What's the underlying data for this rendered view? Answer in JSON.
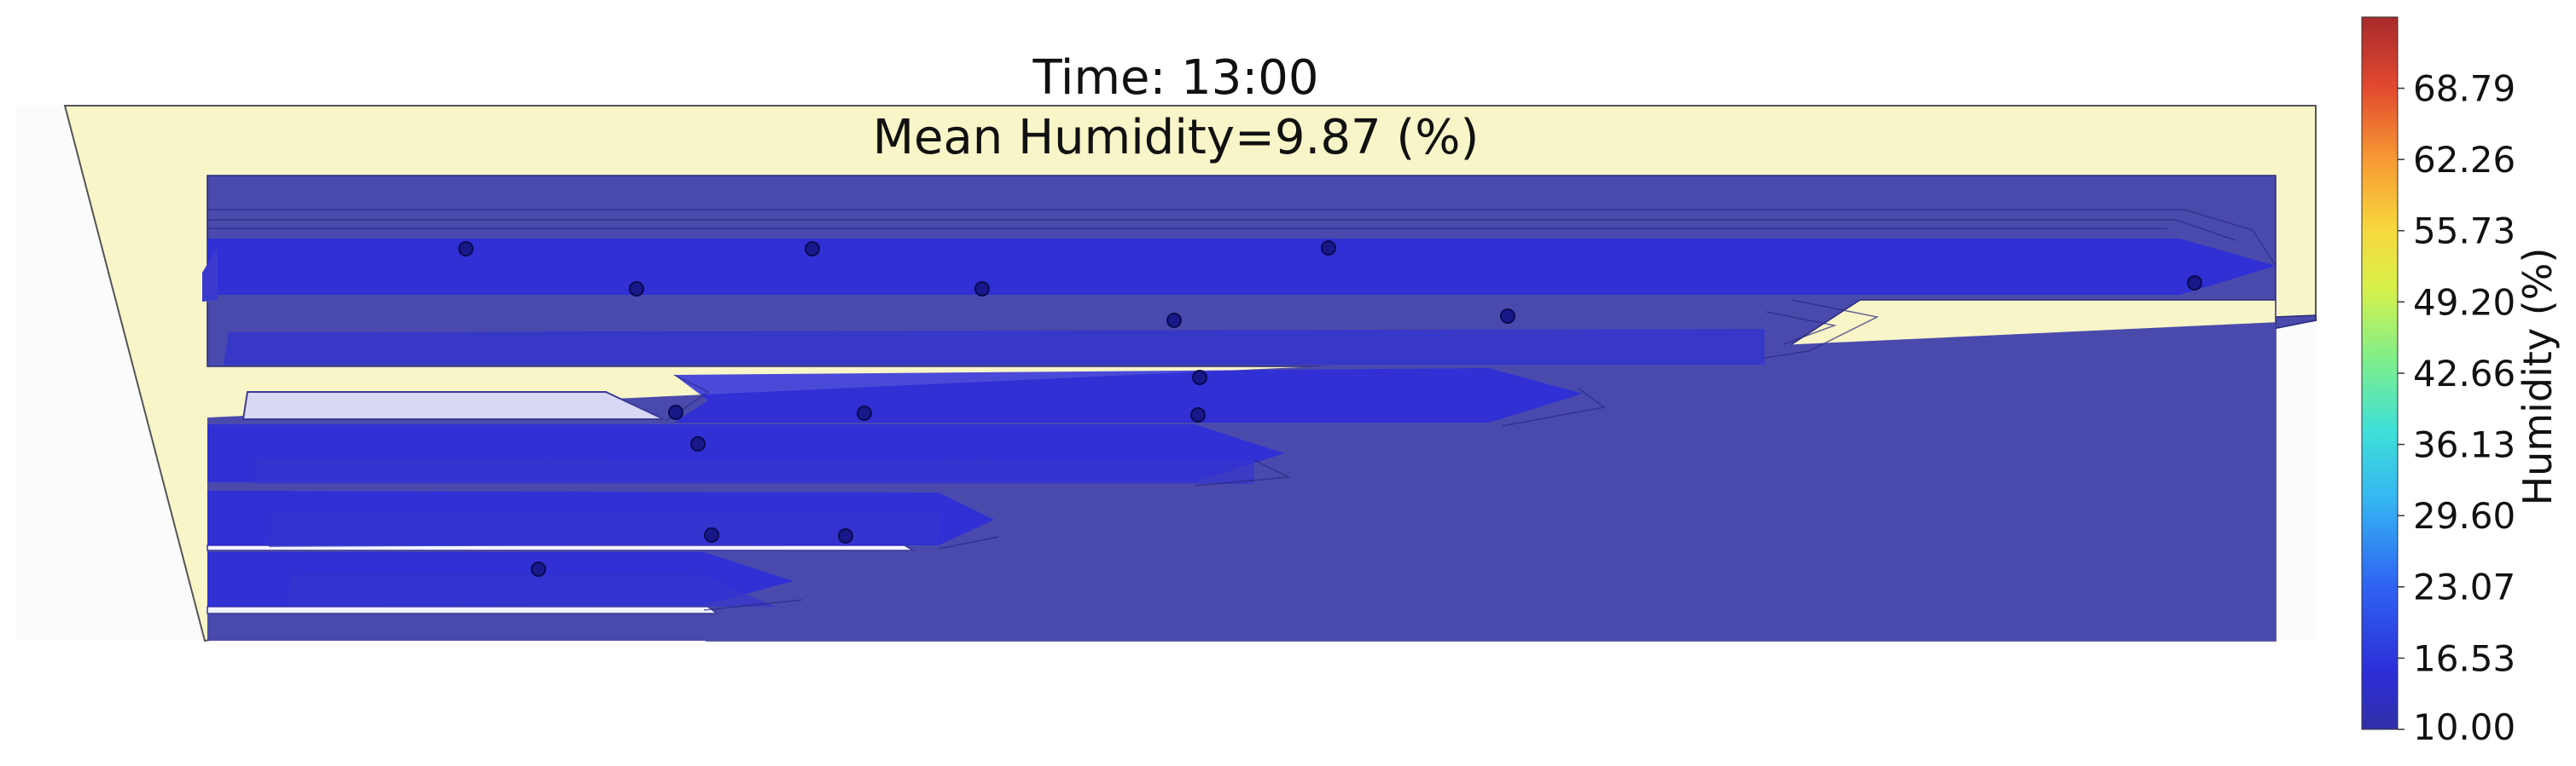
{
  "chart_data": {
    "type": "heatmap",
    "title_lines": [
      "Time: 13:00",
      "Mean Humidity=9.87 (%)"
    ],
    "time": "13:00",
    "mean_humidity": 9.87,
    "colorbar": {
      "label": "Humidity (%)",
      "range": [
        10.0,
        75.32
      ],
      "colormap": "jet",
      "ticks": [
        "10.00",
        "16.53",
        "23.07",
        "29.60",
        "36.13",
        "42.66",
        "49.20",
        "55.73",
        "62.26",
        "68.79"
      ],
      "tick_values": [
        10.0,
        16.53,
        23.07,
        29.6,
        36.13,
        42.66,
        49.2,
        55.73,
        62.26,
        68.79
      ]
    },
    "sensor_count": 19,
    "field_fill_humidity": 10.0,
    "channel_core_humidity": 16.0,
    "colors": {
      "background_zone": "#f8f5c8",
      "field": "#4a4aad",
      "channel": "#2b2bdc",
      "sensor": "#18188a"
    },
    "grid": false,
    "axes_visible": false
  }
}
